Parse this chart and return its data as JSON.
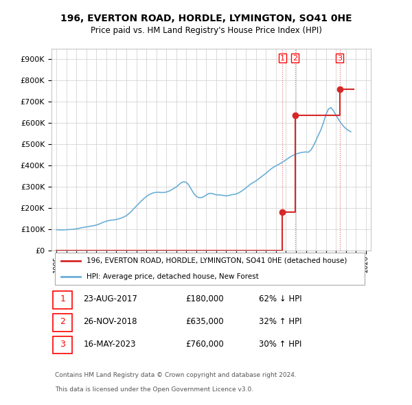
{
  "title_line1": "196, EVERTON ROAD, HORDLE, LYMINGTON, SO41 0HE",
  "title_line2": "Price paid vs. HM Land Registry's House Price Index (HPI)",
  "legend_red": "196, EVERTON ROAD, HORDLE, LYMINGTON, SO41 0HE (detached house)",
  "legend_blue": "HPI: Average price, detached house, New Forest",
  "footer_line1": "Contains HM Land Registry data © Crown copyright and database right 2024.",
  "footer_line2": "This data is licensed under the Open Government Licence v3.0.",
  "transactions": [
    {
      "num": 1,
      "date": "23-AUG-2017",
      "price": 180000,
      "pct": "62%",
      "dir": "↓",
      "year": 2017.65
    },
    {
      "num": 2,
      "date": "26-NOV-2018",
      "price": 635000,
      "pct": "32%",
      "dir": "↑",
      "year": 2018.9
    },
    {
      "num": 3,
      "date": "16-MAY-2023",
      "price": 760000,
      "pct": "30%",
      "dir": "↑",
      "year": 2023.38
    }
  ],
  "hpi_color": "#6baed6",
  "red_color": "#d62728",
  "ylim": [
    0,
    950000
  ],
  "yticks": [
    0,
    100000,
    200000,
    300000,
    400000,
    500000,
    600000,
    700000,
    800000,
    900000
  ],
  "hpi_data": {
    "years": [
      1995.0,
      1995.25,
      1995.5,
      1995.75,
      1996.0,
      1996.25,
      1996.5,
      1996.75,
      1997.0,
      1997.25,
      1997.5,
      1997.75,
      1998.0,
      1998.25,
      1998.5,
      1998.75,
      1999.0,
      1999.25,
      1999.5,
      1999.75,
      2000.0,
      2000.25,
      2000.5,
      2000.75,
      2001.0,
      2001.25,
      2001.5,
      2001.75,
      2002.0,
      2002.25,
      2002.5,
      2002.75,
      2003.0,
      2003.25,
      2003.5,
      2003.75,
      2004.0,
      2004.25,
      2004.5,
      2004.75,
      2005.0,
      2005.25,
      2005.5,
      2005.75,
      2006.0,
      2006.25,
      2006.5,
      2006.75,
      2007.0,
      2007.25,
      2007.5,
      2007.75,
      2008.0,
      2008.25,
      2008.5,
      2008.75,
      2009.0,
      2009.25,
      2009.5,
      2009.75,
      2010.0,
      2010.25,
      2010.5,
      2010.75,
      2011.0,
      2011.25,
      2011.5,
      2011.75,
      2012.0,
      2012.25,
      2012.5,
      2012.75,
      2013.0,
      2013.25,
      2013.5,
      2013.75,
      2014.0,
      2014.25,
      2014.5,
      2014.75,
      2015.0,
      2015.25,
      2015.5,
      2015.75,
      2016.0,
      2016.25,
      2016.5,
      2016.75,
      2017.0,
      2017.25,
      2017.5,
      2017.75,
      2018.0,
      2018.25,
      2018.5,
      2018.75,
      2019.0,
      2019.25,
      2019.5,
      2019.75,
      2020.0,
      2020.25,
      2020.5,
      2020.75,
      2021.0,
      2021.25,
      2021.5,
      2021.75,
      2022.0,
      2022.25,
      2022.5,
      2022.75,
      2023.0,
      2023.25,
      2023.5,
      2023.75,
      2024.0,
      2024.25,
      2024.5
    ],
    "values": [
      97000,
      96000,
      95500,
      96000,
      97000,
      97500,
      98000,
      99000,
      101000,
      103000,
      106000,
      108000,
      110000,
      112000,
      114000,
      116000,
      119000,
      123000,
      128000,
      133000,
      137000,
      140000,
      142000,
      143000,
      145000,
      148000,
      152000,
      157000,
      163000,
      172000,
      183000,
      196000,
      208000,
      220000,
      232000,
      243000,
      253000,
      261000,
      267000,
      271000,
      273000,
      273000,
      272000,
      272000,
      274000,
      278000,
      284000,
      291000,
      298000,
      308000,
      318000,
      323000,
      320000,
      308000,
      288000,
      268000,
      255000,
      248000,
      248000,
      252000,
      260000,
      267000,
      268000,
      265000,
      261000,
      261000,
      260000,
      258000,
      256000,
      258000,
      261000,
      263000,
      265000,
      270000,
      277000,
      285000,
      294000,
      304000,
      313000,
      320000,
      327000,
      336000,
      345000,
      354000,
      363000,
      373000,
      383000,
      391000,
      398000,
      404000,
      411000,
      418000,
      426000,
      434000,
      442000,
      448000,
      453000,
      457000,
      460000,
      462000,
      463000,
      462000,
      472000,
      492000,
      517000,
      543000,
      568000,
      601000,
      638000,
      665000,
      672000,
      658000,
      637000,
      618000,
      600000,
      585000,
      573000,
      565000,
      558000
    ]
  },
  "red_line_data": {
    "years": [
      1995.0,
      2017.65,
      2017.65,
      2018.9,
      2018.9,
      2023.38,
      2023.38,
      2024.5
    ],
    "values": [
      0,
      0,
      180000,
      180000,
      635000,
      635000,
      760000,
      760000
    ]
  },
  "xlabel_years": [
    1995,
    1996,
    1997,
    1998,
    1999,
    2000,
    2001,
    2002,
    2003,
    2004,
    2005,
    2006,
    2007,
    2008,
    2009,
    2010,
    2011,
    2012,
    2013,
    2014,
    2015,
    2016,
    2017,
    2018,
    2019,
    2020,
    2021,
    2022,
    2023,
    2024,
    2025,
    2026
  ]
}
